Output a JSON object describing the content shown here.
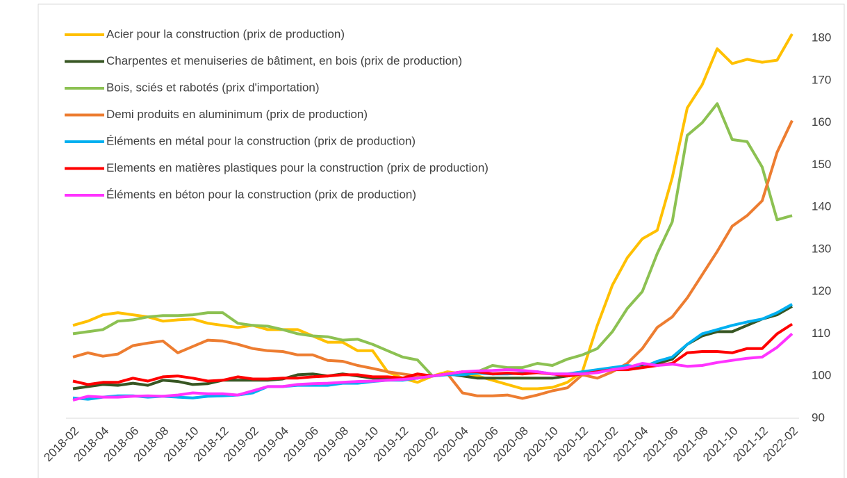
{
  "chart_data": {
    "type": "line",
    "categories": [
      "2018-02",
      null,
      "2018-04",
      null,
      "2018-06",
      null,
      "2018-08",
      null,
      "2018-10",
      null,
      "2018-12",
      null,
      "2019-02",
      null,
      "2019-04",
      null,
      "2019-06",
      null,
      "2019-08",
      null,
      "2019-10",
      null,
      "2019-12",
      null,
      "2020-02",
      null,
      "2020-04",
      null,
      "2020-06",
      null,
      "2020-08",
      null,
      "2020-10",
      null,
      "2020-12",
      null,
      "2021-02",
      null,
      "2021-04",
      null,
      "2021-06",
      null,
      "2021-08",
      null,
      "2021-10",
      null,
      "2021-12",
      null,
      "2022-02"
    ],
    "series": [
      {
        "name": "Acier pour la construction (prix de production)",
        "color": "#ffc000",
        "values": [
          112,
          113,
          114.5,
          115,
          114.5,
          114,
          113,
          113.3,
          113.5,
          112.5,
          112,
          111.5,
          112,
          111,
          111,
          111,
          109.5,
          108,
          108,
          106,
          106,
          101,
          99.5,
          98.5,
          100,
          101,
          100.5,
          100,
          99,
          98,
          97,
          97,
          97.3,
          98.5,
          101,
          112,
          121.5,
          128,
          132.5,
          134.5,
          147,
          163.5,
          169,
          177.5,
          174,
          175,
          174.3,
          174.8,
          181
        ]
      },
      {
        "name": "Charpentes et menuiseries de bâtiment, en bois (prix de production)",
        "color": "#375623",
        "values": [
          97,
          97.5,
          98,
          97.8,
          98.3,
          97.8,
          99,
          98.7,
          98,
          98.2,
          99,
          99,
          99,
          99,
          99.3,
          100.3,
          100.5,
          100,
          100.5,
          100,
          99.5,
          99.5,
          99.5,
          99.5,
          100,
          100.5,
          100,
          99.5,
          99.5,
          99.5,
          99.5,
          99.5,
          99.5,
          100,
          100.5,
          101,
          101.5,
          102,
          102.5,
          103,
          104,
          107.5,
          109.5,
          110.5,
          110.5,
          112,
          113.5,
          114.5,
          116.5
        ]
      },
      {
        "name": "Bois, sciés et rabotés (prix d'importation)",
        "color": "#8cc152",
        "values": [
          110,
          110.5,
          111,
          113,
          113.3,
          114,
          114.3,
          114.3,
          114.5,
          115,
          115,
          112.5,
          112,
          111.8,
          111,
          110,
          109.5,
          109.3,
          108.5,
          108.7,
          107.5,
          106,
          104.5,
          103.8,
          100,
          100.5,
          100.5,
          101,
          102.5,
          102,
          102,
          103,
          102.5,
          104,
          105,
          106.5,
          110.5,
          116,
          120,
          129,
          136.5,
          157,
          160,
          164.5,
          156,
          155.5,
          149.5,
          137,
          138
        ]
      },
      {
        "name": "Demi produits en aluminimum (prix de production)",
        "color": "#ed7d31",
        "values": [
          104.5,
          105.5,
          104.7,
          105.2,
          107.2,
          107.8,
          108.3,
          105.5,
          107,
          108.5,
          108.3,
          107.5,
          106.5,
          106,
          105.8,
          105,
          105,
          103.7,
          103.5,
          102.5,
          101.8,
          101,
          100.5,
          100,
          100,
          100.5,
          96,
          95.3,
          95.3,
          95.5,
          94.7,
          95.5,
          96.5,
          97.2,
          100.3,
          99.5,
          101,
          103,
          106.5,
          111.5,
          114,
          118.5,
          124,
          129.5,
          135.5,
          138,
          141.5,
          153,
          160.5
        ]
      },
      {
        "name": "Éléments en métal pour la construction (prix de production)",
        "color": "#00b0f0",
        "values": [
          94.8,
          94.5,
          95,
          95.3,
          95.3,
          95,
          95.2,
          95,
          94.8,
          95.2,
          95.3,
          95.5,
          96,
          97.5,
          97.5,
          97.8,
          97.8,
          97.8,
          98.3,
          98.3,
          98.7,
          99,
          99,
          99.5,
          100,
          100.3,
          100.3,
          100.7,
          100.5,
          100.5,
          100.7,
          101,
          100.5,
          100.5,
          101,
          101.5,
          102,
          102.5,
          102,
          103.5,
          104.5,
          107.5,
          110,
          111,
          112,
          112.8,
          113.5,
          115,
          117
        ]
      },
      {
        "name": "Elements en matières plastiques pour la construction (prix de production)",
        "color": "#ff0000",
        "values": [
          98.8,
          98,
          98.5,
          98.5,
          99.5,
          98.8,
          99.8,
          100,
          99.5,
          98.8,
          99,
          99.8,
          99.3,
          99.3,
          99.5,
          99.5,
          99.8,
          100,
          100.3,
          100.3,
          99.8,
          99.8,
          99.5,
          100.5,
          100,
          100.5,
          101,
          101,
          100.5,
          100.7,
          100.5,
          100.8,
          100.5,
          100,
          100.5,
          101,
          101.5,
          101.5,
          102,
          102.5,
          103,
          105.5,
          105.8,
          105.8,
          105.5,
          106.5,
          106.5,
          110,
          112.3
        ]
      },
      {
        "name": "Éléments en béton pour la construction (prix de production)",
        "color": "#ff33ff",
        "values": [
          94.3,
          95.2,
          95,
          95,
          95.2,
          95.3,
          95.2,
          95.5,
          96,
          95.8,
          95.8,
          95.5,
          96.5,
          97.5,
          97.5,
          98,
          98.2,
          98.3,
          98.5,
          98.7,
          98.8,
          99,
          99.2,
          99.5,
          100,
          100.5,
          101,
          101.2,
          101.3,
          101.5,
          101.3,
          101,
          100.5,
          100.5,
          100.5,
          100.8,
          101.5,
          102,
          103,
          102.5,
          102.8,
          102.3,
          102.5,
          103.2,
          103.7,
          104.2,
          104.5,
          106.8,
          110
        ]
      }
    ],
    "ylim": [
      90,
      180
    ],
    "yticks": [
      90,
      100,
      110,
      120,
      130,
      140,
      150,
      160,
      170,
      180
    ],
    "y_axis_side": "right",
    "grid": false
  }
}
